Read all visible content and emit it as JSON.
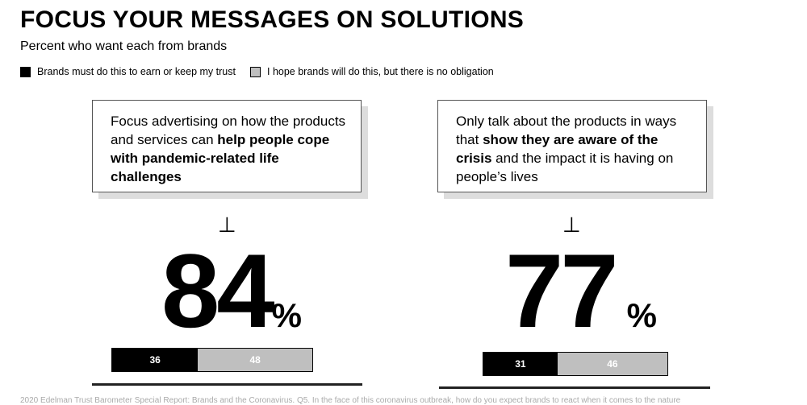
{
  "chart_data": {
    "type": "bar",
    "title": "FOCUS YOUR MESSAGES ON SOLUTIONS",
    "subtitle": "Percent who want each from brands",
    "legend": [
      {
        "name": "Brands must do this to earn or keep my trust",
        "color": "#000000"
      },
      {
        "name": "I hope brands will do this, but there is no obligation",
        "color": "#bfbfbf"
      }
    ],
    "panels": [
      {
        "statement_plain": "Focus advertising on how the products and services can ",
        "statement_bold": "help people cope with pandemic-related life challenges",
        "statement_end": "",
        "total": "84",
        "unit": "%",
        "values": [
          36,
          48
        ]
      },
      {
        "statement_plain": "Only talk about the products in ways that ",
        "statement_bold": "show they are aware of the crisis",
        "statement_end": " and the impact it is having on people’s lives",
        "total": "77",
        "unit": "%",
        "values": [
          31,
          46
        ]
      }
    ]
  },
  "footer": "2020 Edelman Trust Barometer Special Report: Brands and the Coronavirus. Q5. In the face of this coronavirus outbreak, how do you expect brands to react when it comes to the nature"
}
